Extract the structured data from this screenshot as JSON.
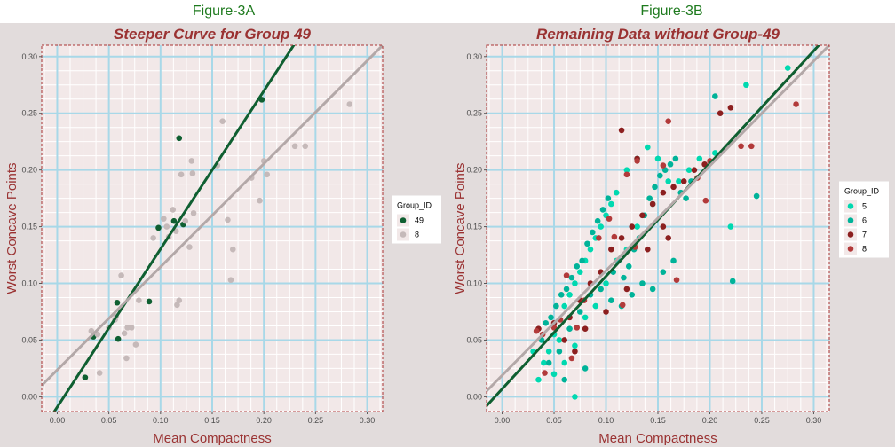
{
  "figures": [
    {
      "label": "Figure-3A",
      "chart_data": {
        "type": "scatter",
        "title": "Steeper Curve for Group 49",
        "xlabel": "Mean Compactness",
        "ylabel": "Worst Concave Points",
        "xlim": [
          -0.015,
          0.315
        ],
        "ylim": [
          -0.013,
          0.31
        ],
        "x_ticks": [
          "0.00",
          "0.05",
          "0.10",
          "0.15",
          "0.20",
          "0.25",
          "0.30"
        ],
        "y_ticks": [
          "0.00",
          "0.05",
          "0.10",
          "0.15",
          "0.20",
          "0.25",
          "0.30"
        ],
        "grid": true,
        "legend_title": "Group_ID",
        "legend_position": "right",
        "series": [
          {
            "name": "49",
            "color": "#0f5f31",
            "points": [
              [
                0.027,
                0.017
              ],
              [
                0.035,
                0.053
              ],
              [
                0.058,
                0.083
              ],
              [
                0.059,
                0.051
              ],
              [
                0.089,
                0.084
              ],
              [
                0.098,
                0.149
              ],
              [
                0.113,
                0.155
              ],
              [
                0.118,
                0.228
              ],
              [
                0.122,
                0.152
              ],
              [
                0.198,
                0.262
              ]
            ]
          },
          {
            "name": "8",
            "color": "#c5b9b9",
            "points": [
              [
                0.033,
                0.058
              ],
              [
                0.039,
                0.055
              ],
              [
                0.041,
                0.021
              ],
              [
                0.05,
                0.061
              ],
              [
                0.056,
                0.068
              ],
              [
                0.057,
                0.071
              ],
              [
                0.062,
                0.107
              ],
              [
                0.065,
                0.056
              ],
              [
                0.067,
                0.034
              ],
              [
                0.068,
                0.061
              ],
              [
                0.072,
                0.061
              ],
              [
                0.076,
                0.046
              ],
              [
                0.079,
                0.085
              ],
              [
                0.093,
                0.14
              ],
              [
                0.103,
                0.157
              ],
              [
                0.106,
                0.15
              ],
              [
                0.108,
                0.141
              ],
              [
                0.112,
                0.165
              ],
              [
                0.115,
                0.146
              ],
              [
                0.116,
                0.081
              ],
              [
                0.118,
                0.085
              ],
              [
                0.12,
                0.196
              ],
              [
                0.124,
                0.155
              ],
              [
                0.128,
                0.132
              ],
              [
                0.13,
                0.208
              ],
              [
                0.131,
                0.197
              ],
              [
                0.132,
                0.162
              ],
              [
                0.155,
                0.204
              ],
              [
                0.16,
                0.243
              ],
              [
                0.165,
                0.156
              ],
              [
                0.168,
                0.103
              ],
              [
                0.17,
                0.13
              ],
              [
                0.188,
                0.193
              ],
              [
                0.196,
                0.173
              ],
              [
                0.2,
                0.208
              ],
              [
                0.203,
                0.196
              ],
              [
                0.23,
                0.221
              ],
              [
                0.24,
                0.221
              ],
              [
                0.283,
                0.258
              ]
            ]
          }
        ],
        "lines": [
          {
            "series": "49",
            "color": "#0f5f31",
            "x1": -0.015,
            "y1": -0.03,
            "x2": 0.315,
            "y2": 0.43
          },
          {
            "series": "8",
            "color": "#b3a8a8",
            "x1": -0.015,
            "y1": 0.01,
            "x2": 0.315,
            "y2": 0.31
          }
        ]
      }
    },
    {
      "label": "Figure-3B",
      "chart_data": {
        "type": "scatter",
        "title": "Remaining Data without Group-49",
        "xlabel": "Mean Compactness",
        "ylabel": "Worst Concave Points",
        "xlim": [
          -0.015,
          0.315
        ],
        "ylim": [
          -0.013,
          0.31
        ],
        "x_ticks": [
          "0.00",
          "0.05",
          "0.10",
          "0.15",
          "0.20",
          "0.25",
          "0.30"
        ],
        "y_ticks": [
          "0.00",
          "0.05",
          "0.10",
          "0.15",
          "0.20",
          "0.25",
          "0.30"
        ],
        "grid": true,
        "legend_title": "Group_ID",
        "legend_position": "right",
        "series": [
          {
            "name": "5",
            "color": "#00d9b0",
            "points": [
              [
                0.035,
                0.015
              ],
              [
                0.04,
                0.03
              ],
              [
                0.045,
                0.04
              ],
              [
                0.05,
                0.055
              ],
              [
                0.055,
                0.05
              ],
              [
                0.06,
                0.08
              ],
              [
                0.065,
                0.09
              ],
              [
                0.07,
                0.1
              ],
              [
                0.075,
                0.11
              ],
              [
                0.08,
                0.12
              ],
              [
                0.085,
                0.13
              ],
              [
                0.09,
                0.14
              ],
              [
                0.095,
                0.15
              ],
              [
                0.1,
                0.16
              ],
              [
                0.105,
                0.17
              ],
              [
                0.11,
                0.18
              ],
              [
                0.12,
                0.2
              ],
              [
                0.13,
                0.21
              ],
              [
                0.14,
                0.22
              ],
              [
                0.15,
                0.21
              ],
              [
                0.16,
                0.19
              ],
              [
                0.17,
                0.19
              ],
              [
                0.18,
                0.2
              ],
              [
                0.19,
                0.21
              ],
              [
                0.205,
                0.215
              ],
              [
                0.22,
                0.15
              ],
              [
                0.235,
                0.275
              ],
              [
                0.275,
                0.29
              ],
              [
                0.06,
                0.03
              ],
              [
                0.07,
                0.045
              ],
              [
                0.08,
                0.07
              ],
              [
                0.09,
                0.08
              ],
              [
                0.1,
                0.1
              ],
              [
                0.11,
                0.12
              ],
              [
                0.12,
                0.13
              ],
              [
                0.03,
                0.04
              ],
              [
                0.05,
                0.02
              ],
              [
                0.07,
                0.0
              ],
              [
                0.13,
                0.15
              ],
              [
                0.145,
                0.17
              ]
            ]
          },
          {
            "name": "6",
            "color": "#00b399",
            "points": [
              [
                0.038,
                0.05
              ],
              [
                0.042,
                0.065
              ],
              [
                0.047,
                0.07
              ],
              [
                0.052,
                0.08
              ],
              [
                0.057,
                0.09
              ],
              [
                0.062,
                0.095
              ],
              [
                0.067,
                0.105
              ],
              [
                0.072,
                0.115
              ],
              [
                0.077,
                0.12
              ],
              [
                0.082,
                0.135
              ],
              [
                0.087,
                0.145
              ],
              [
                0.092,
                0.155
              ],
              [
                0.097,
                0.165
              ],
              [
                0.102,
                0.175
              ],
              [
                0.107,
                0.11
              ],
              [
                0.112,
                0.12
              ],
              [
                0.117,
                0.105
              ],
              [
                0.122,
                0.115
              ],
              [
                0.127,
                0.13
              ],
              [
                0.132,
                0.14
              ],
              [
                0.137,
                0.16
              ],
              [
                0.142,
                0.175
              ],
              [
                0.147,
                0.185
              ],
              [
                0.152,
                0.195
              ],
              [
                0.157,
                0.2
              ],
              [
                0.162,
                0.205
              ],
              [
                0.167,
                0.21
              ],
              [
                0.172,
                0.18
              ],
              [
                0.177,
                0.175
              ],
              [
                0.182,
                0.19
              ],
              [
                0.205,
                0.265
              ],
              [
                0.222,
                0.102
              ],
              [
                0.245,
                0.177
              ],
              [
                0.045,
                0.03
              ],
              [
                0.055,
                0.04
              ],
              [
                0.065,
                0.06
              ],
              [
                0.075,
                0.075
              ],
              [
                0.085,
                0.09
              ],
              [
                0.095,
                0.095
              ],
              [
                0.105,
                0.085
              ],
              [
                0.115,
                0.08
              ],
              [
                0.125,
                0.09
              ],
              [
                0.135,
                0.1
              ],
              [
                0.145,
                0.095
              ],
              [
                0.155,
                0.11
              ],
              [
                0.165,
                0.12
              ],
              [
                0.06,
                0.015
              ],
              [
                0.08,
                0.025
              ]
            ]
          },
          {
            "name": "7",
            "color": "#8c1f1f",
            "points": [
              [
                0.035,
                0.06
              ],
              [
                0.05,
                0.065
              ],
              [
                0.065,
                0.07
              ],
              [
                0.075,
                0.085
              ],
              [
                0.085,
                0.1
              ],
              [
                0.095,
                0.11
              ],
              [
                0.105,
                0.13
              ],
              [
                0.115,
                0.14
              ],
              [
                0.125,
                0.15
              ],
              [
                0.135,
                0.16
              ],
              [
                0.145,
                0.17
              ],
              [
                0.155,
                0.18
              ],
              [
                0.165,
                0.185
              ],
              [
                0.175,
                0.19
              ],
              [
                0.185,
                0.2
              ],
              [
                0.195,
                0.205
              ],
              [
                0.21,
                0.25
              ],
              [
                0.22,
                0.255
              ],
              [
                0.115,
                0.235
              ],
              [
                0.13,
                0.21
              ],
              [
                0.155,
                0.15
              ],
              [
                0.08,
                0.06
              ],
              [
                0.1,
                0.075
              ],
              [
                0.06,
                0.05
              ],
              [
                0.07,
                0.04
              ],
              [
                0.12,
                0.095
              ],
              [
                0.14,
                0.13
              ],
              [
                0.16,
                0.14
              ]
            ]
          },
          {
            "name": "8",
            "color": "#b23a3a",
            "points": [
              [
                0.033,
                0.058
              ],
              [
                0.039,
                0.055
              ],
              [
                0.041,
                0.021
              ],
              [
                0.05,
                0.061
              ],
              [
                0.056,
                0.068
              ],
              [
                0.062,
                0.107
              ],
              [
                0.067,
                0.034
              ],
              [
                0.072,
                0.061
              ],
              [
                0.079,
                0.085
              ],
              [
                0.093,
                0.14
              ],
              [
                0.103,
                0.157
              ],
              [
                0.108,
                0.141
              ],
              [
                0.116,
                0.081
              ],
              [
                0.12,
                0.196
              ],
              [
                0.128,
                0.132
              ],
              [
                0.13,
                0.208
              ],
              [
                0.155,
                0.204
              ],
              [
                0.16,
                0.243
              ],
              [
                0.168,
                0.103
              ],
              [
                0.188,
                0.193
              ],
              [
                0.196,
                0.173
              ],
              [
                0.2,
                0.208
              ],
              [
                0.23,
                0.221
              ],
              [
                0.24,
                0.221
              ],
              [
                0.283,
                0.258
              ]
            ]
          }
        ],
        "lines": [
          {
            "series": "all",
            "color": "#0f5f31",
            "x1": -0.015,
            "y1": -0.008,
            "x2": 0.315,
            "y2": 0.32
          },
          {
            "series": "all",
            "color": "#b3a8a8",
            "x1": -0.015,
            "y1": 0.005,
            "x2": 0.315,
            "y2": 0.31
          }
        ]
      }
    }
  ]
}
